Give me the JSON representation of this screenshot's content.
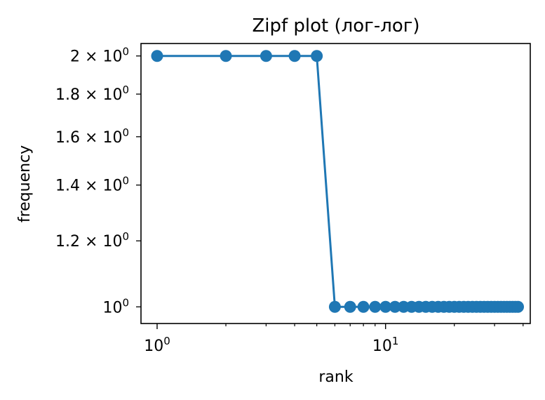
{
  "chart_data": {
    "type": "line",
    "title": "Zipf plot (лог-лог)",
    "xlabel": "rank",
    "ylabel": "frequency",
    "xscale": "log",
    "yscale": "log",
    "xlim": [
      0.85,
      43
    ],
    "ylim": [
      0.955,
      2.07
    ],
    "grid": false,
    "legend": "none",
    "marker": "circle",
    "color": "#1f77b4",
    "x": [
      1,
      2,
      3,
      4,
      5,
      6,
      7,
      8,
      9,
      10,
      11,
      12,
      13,
      14,
      15,
      16,
      17,
      18,
      19,
      20,
      21,
      22,
      23,
      24,
      25,
      26,
      27,
      28,
      29,
      30,
      31,
      32,
      33,
      34,
      35,
      36,
      37,
      38
    ],
    "y": [
      2,
      2,
      2,
      2,
      2,
      1,
      1,
      1,
      1,
      1,
      1,
      1,
      1,
      1,
      1,
      1,
      1,
      1,
      1,
      1,
      1,
      1,
      1,
      1,
      1,
      1,
      1,
      1,
      1,
      1,
      1,
      1,
      1,
      1,
      1,
      1,
      1,
      1
    ],
    "x_ticks": [
      {
        "value": 1,
        "base": "10",
        "exp": "0"
      },
      {
        "value": 10,
        "base": "10",
        "exp": "1"
      }
    ],
    "y_ticks": [
      {
        "value": 1.0,
        "prefix": "",
        "base": "10",
        "exp": "0"
      },
      {
        "value": 1.2,
        "prefix": "1.2 × ",
        "base": "10",
        "exp": "0"
      },
      {
        "value": 1.4,
        "prefix": "1.4 × ",
        "base": "10",
        "exp": "0"
      },
      {
        "value": 1.6,
        "prefix": "1.6 × ",
        "base": "10",
        "exp": "0"
      },
      {
        "value": 1.8,
        "prefix": "1.8 × ",
        "base": "10",
        "exp": "0"
      },
      {
        "value": 2.0,
        "prefix": "2 × ",
        "base": "10",
        "exp": "0"
      }
    ]
  }
}
